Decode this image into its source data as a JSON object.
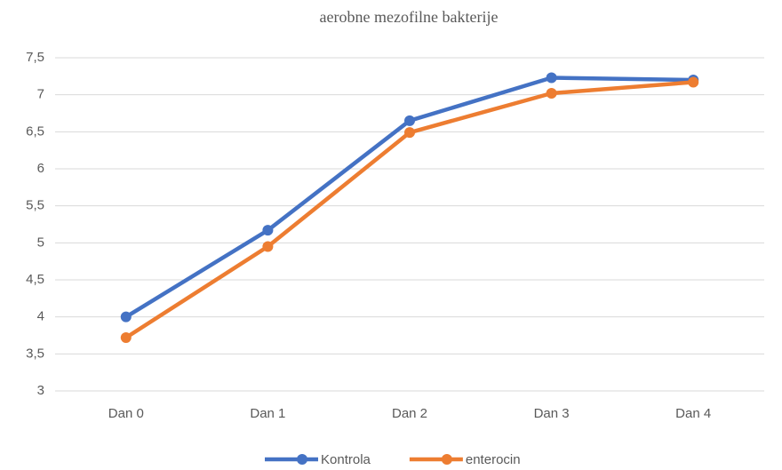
{
  "chart_data": {
    "type": "line",
    "title": "aerobne mezofilne bakterije",
    "categories": [
      "Dan 0",
      "Dan 1",
      "Dan 2",
      "Dan 3",
      "Dan 4"
    ],
    "series": [
      {
        "name": "Kontrola",
        "color": "#4472c4",
        "values": [
          4.0,
          5.17,
          6.65,
          7.23,
          7.2
        ]
      },
      {
        "name": "enterocin",
        "color": "#ed7d31",
        "values": [
          3.72,
          4.95,
          6.49,
          7.02,
          7.17
        ]
      }
    ],
    "ylim": [
      3,
      7.5
    ],
    "yticks": [
      3,
      {
        "value": 3.5,
        "label": "3,5"
      },
      4,
      {
        "value": 4.5,
        "label": "4,5"
      },
      5,
      {
        "value": 5.5,
        "label": "5,5"
      },
      6,
      {
        "value": 6.5,
        "label": "6,5"
      },
      7,
      {
        "value": 7.5,
        "label": "7,5"
      }
    ],
    "grid": true,
    "legend": "bottom"
  }
}
